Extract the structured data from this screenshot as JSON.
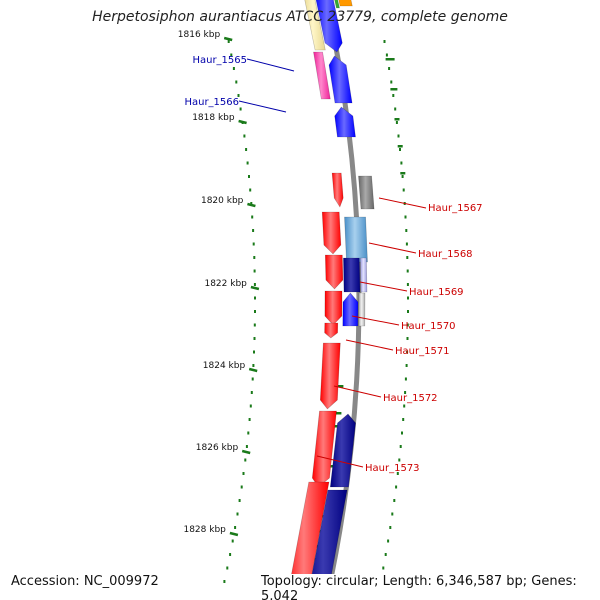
{
  "title": "Herpetosiphon aurantiacus ATCC 23779, complete genome",
  "footer": {
    "accession": "Accession: NC_009972",
    "summary": "Topology: circular; Length: 6,346,587 bp; Genes: 5,042"
  },
  "ticks": [
    {
      "label": "1816 kbp"
    },
    {
      "label": "1818 kbp"
    },
    {
      "label": "1820 kbp"
    },
    {
      "label": "1822 kbp"
    },
    {
      "label": "1824 kbp"
    },
    {
      "label": "1826 kbp"
    },
    {
      "label": "1828 kbp"
    }
  ],
  "genes": [
    {
      "name": "Haur_1565",
      "color": "#0000aa"
    },
    {
      "name": "Haur_1566",
      "color": "#0000aa"
    },
    {
      "name": "Haur_1567",
      "color": "#cc0000"
    },
    {
      "name": "Haur_1568",
      "color": "#cc0000"
    },
    {
      "name": "Haur_1569",
      "color": "#cc0000"
    },
    {
      "name": "Haur_1570",
      "color": "#cc0000"
    },
    {
      "name": "Haur_1571",
      "color": "#cc0000"
    },
    {
      "name": "Haur_1572",
      "color": "#cc0000"
    },
    {
      "name": "Haur_1573",
      "color": "#cc0000"
    }
  ],
  "colors": {
    "backbone": "#888888",
    "tick": "#1a7a1a",
    "forward_strand": "#ff0000",
    "reverse_strand": "#0000ff",
    "dark_blue": "#000080",
    "magenta": "#ee2299",
    "gray": "#666666",
    "steel_blue": "#4a90c8",
    "khaki": "#e8d890"
  }
}
